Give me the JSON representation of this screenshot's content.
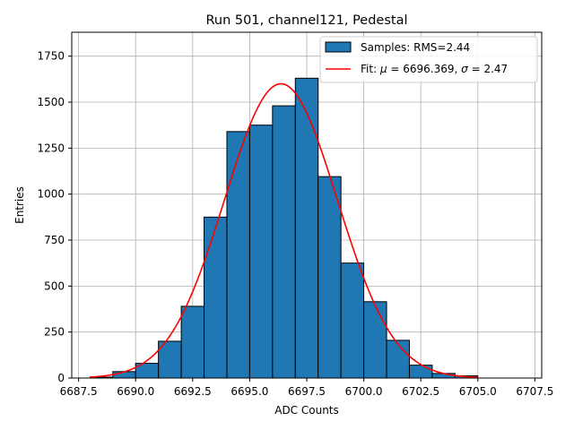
{
  "chart_data": {
    "type": "bar",
    "title": "Run 501, channel121, Pedestal",
    "xlabel": "ADC Counts",
    "ylabel": "Entries",
    "xlim": [
      6687.2,
      6707.8
    ],
    "ylim": [
      0,
      1880
    ],
    "grid": true,
    "legend_position": "top-right",
    "xticks": [
      6687.5,
      6690.0,
      6692.5,
      6695.0,
      6697.5,
      6700.0,
      6702.5,
      6705.0,
      6707.5
    ],
    "xtick_labels": [
      "6687.5",
      "6690.0",
      "6692.5",
      "6695.0",
      "6697.5",
      "6700.0",
      "6702.5",
      "6705.0",
      "6707.5"
    ],
    "yticks": [
      0,
      250,
      500,
      750,
      1000,
      1250,
      1500,
      1750
    ],
    "ytick_labels": [
      "0",
      "250",
      "500",
      "750",
      "1000",
      "1250",
      "1500",
      "1750"
    ],
    "histogram": {
      "name": "Samples: RMS=2.44",
      "color": "#1f77b4",
      "edge_color": "#000000",
      "bins": [
        {
          "x0": 6688,
          "x1": 6689,
          "value": 5
        },
        {
          "x0": 6689,
          "x1": 6690,
          "value": 35
        },
        {
          "x0": 6690,
          "x1": 6691,
          "value": 80
        },
        {
          "x0": 6691,
          "x1": 6692,
          "value": 200
        },
        {
          "x0": 6692,
          "x1": 6693,
          "value": 390
        },
        {
          "x0": 6693,
          "x1": 6694,
          "value": 875
        },
        {
          "x0": 6694,
          "x1": 6695,
          "value": 1340
        },
        {
          "x0": 6695,
          "x1": 6696,
          "value": 1375
        },
        {
          "x0": 6696,
          "x1": 6697,
          "value": 1480
        },
        {
          "x0": 6697,
          "x1": 6698,
          "value": 1630
        },
        {
          "x0": 6698,
          "x1": 6699,
          "value": 1095
        },
        {
          "x0": 6699,
          "x1": 6700,
          "value": 625
        },
        {
          "x0": 6700,
          "x1": 6701,
          "value": 415
        },
        {
          "x0": 6701,
          "x1": 6702,
          "value": 205
        },
        {
          "x0": 6702,
          "x1": 6703,
          "value": 70
        },
        {
          "x0": 6703,
          "x1": 6704,
          "value": 25
        },
        {
          "x0": 6704,
          "x1": 6705,
          "value": 12
        }
      ]
    },
    "fit": {
      "name_prefix": "Fit: ",
      "mu_symbol": "μ",
      "mu_text": " = 6696.369, ",
      "sigma_symbol": "σ",
      "sigma_text": " = 2.47",
      "mu": 6696.369,
      "sigma": 2.47,
      "amplitude": 1600,
      "x_range": [
        6688,
        6705
      ],
      "color": "#ff0000"
    }
  }
}
